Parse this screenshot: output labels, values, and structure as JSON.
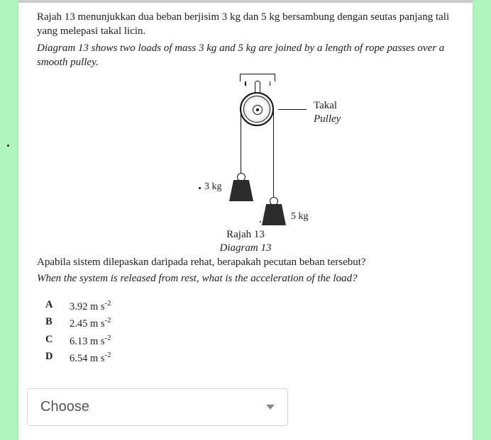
{
  "intro": {
    "line1_my": "Rajah 13 menunjukkan dua beban berjisim 3 kg dan 5 kg bersambung dengan seutas panjang tali yang melepasi takal licin.",
    "line2_en": "Diagram 13 shows two loads of mass 3 kg and 5 kg are joined by a length of rope passes over a smooth pulley."
  },
  "diagram": {
    "pulley_label_my": "Takal",
    "pulley_label_en": "Pulley",
    "mass_left": "3 kg",
    "mass_right": "5 kg",
    "caption_my": "Rajah 13",
    "caption_en": "Diagram 13",
    "colors": {
      "line": "#111111",
      "weight_fill": "#2c2c2c",
      "bg": "#ffffff"
    }
  },
  "question": {
    "q_my": "Apabila sistem dilepaskan daripada rehat, berapakah pecutan beban tersebut?",
    "q_en": "When the system is released from rest, what is the acceleration of the load?"
  },
  "options": {
    "A": {
      "value": "3.92",
      "unit": "m s",
      "exp": "-2"
    },
    "B": {
      "value": "2.45",
      "unit": "m s",
      "exp": "-2"
    },
    "C": {
      "value": "6.13",
      "unit": "m s",
      "exp": "-2"
    },
    "D": {
      "value": "6.54",
      "unit": "m s",
      "exp": "-2"
    }
  },
  "dropdown": {
    "placeholder": "Choose"
  },
  "page_bg": "#b0f5c0"
}
